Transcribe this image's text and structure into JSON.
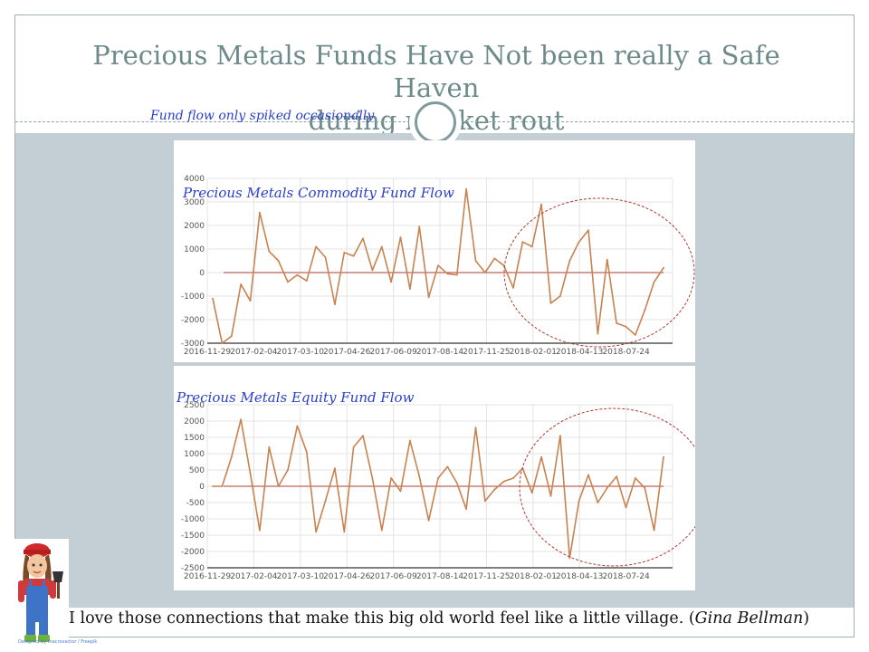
{
  "slide": {
    "title_line1": "Precious Metals Funds Have Not been really a Safe Haven",
    "title_line2": "during market rout",
    "subtitle": "Fund flow only spiked occasionally",
    "caption_main": "I love those connections that make this big old world feel like a little village. (",
    "caption_author": "Gina Bellman",
    "caption_end": ")",
    "credit": "Designed by macrovector / Freepik",
    "colors": {
      "title": "#6d8a8c",
      "body_bg": "#c4ced5",
      "line": "#c8824f",
      "zero": "#b03a2e",
      "annotation": "#2a3fcc"
    },
    "avatar_icon": "farmer-girl-icon"
  },
  "chart_data": [
    {
      "type": "line",
      "title": "Precious Metals Commodity Fund Flow",
      "x_ticks": [
        "2016-11-29",
        "2017-02-04",
        "2017-03-10",
        "2017-04-26",
        "2017-06-09",
        "2017-08-14",
        "2017-11-25",
        "2018-02-01",
        "2018-04-13",
        "2018-07-24"
      ],
      "y_ticks": [
        "4000",
        "3000",
        "2000",
        "1000",
        "0",
        "-1000",
        "-2000",
        "-3000"
      ],
      "ylim": [
        -3000,
        4000
      ],
      "grid": true,
      "series": [
        {
          "values": [
            -1100,
            -3000,
            -2700,
            -500,
            -1200,
            2550,
            900,
            500,
            -400,
            -100,
            -350,
            1100,
            650,
            -1350,
            850,
            700,
            1450,
            100,
            1100,
            -400,
            1500,
            -700,
            1950,
            -1050,
            300,
            -50,
            -100,
            3550,
            500,
            0,
            600,
            300,
            -650,
            1300,
            1100,
            2900,
            -1300,
            -1000,
            500,
            1300,
            1800,
            -2600,
            550,
            -2150,
            -2300,
            -2650,
            -1600,
            -400,
            200
          ]
        }
      ],
      "annotation": "circled recent period"
    },
    {
      "type": "line",
      "title": "Precious Metals Equity Fund Flow",
      "x_ticks": [
        "2016-11-29",
        "2017-02-04",
        "2017-03-10",
        "2017-04-26",
        "2017-06-09",
        "2017-08-14",
        "2017-11-25",
        "2018-02-01",
        "2018-04-13",
        "2018-07-24"
      ],
      "y_ticks": [
        "2500",
        "2000",
        "1500",
        "1000",
        "500",
        "0",
        "-500",
        "-1000",
        "-1500",
        "-2000",
        "-2500"
      ],
      "ylim": [
        -2500,
        2500
      ],
      "grid": true,
      "series": [
        {
          "values": [
            0,
            0,
            900,
            2050,
            400,
            -1350,
            1200,
            0,
            500,
            1850,
            1050,
            -1400,
            -450,
            550,
            -1400,
            1200,
            1550,
            250,
            -1350,
            250,
            -150,
            1400,
            300,
            -1050,
            250,
            600,
            100,
            -700,
            1800,
            -450,
            -100,
            150,
            250,
            550,
            -200,
            900,
            -300,
            1550,
            -2200,
            -450,
            350,
            -500,
            -50,
            300,
            -650,
            250,
            -50,
            -1350,
            900
          ]
        }
      ],
      "annotation": "circled recent period"
    }
  ]
}
